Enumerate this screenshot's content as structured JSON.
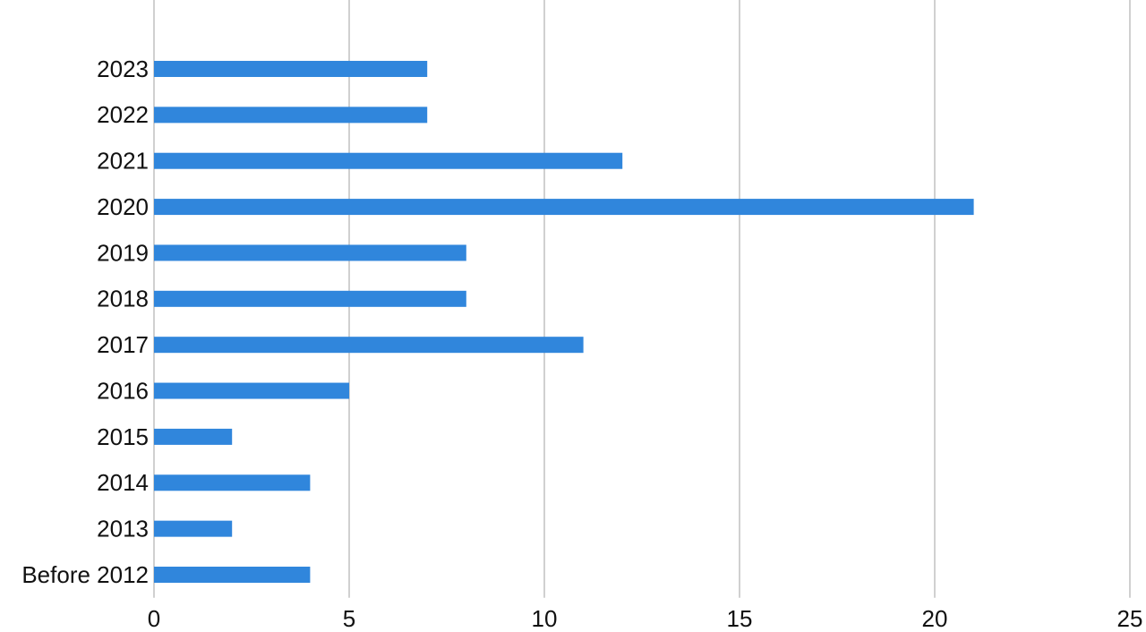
{
  "chart_data": {
    "type": "bar",
    "orientation": "horizontal",
    "categories": [
      "2023",
      "2022",
      "2021",
      "2020",
      "2019",
      "2018",
      "2017",
      "2016",
      "2015",
      "2014",
      "2013",
      "Before 2012"
    ],
    "values": [
      7,
      7,
      12,
      21,
      8,
      8,
      11,
      5,
      2,
      4,
      2,
      4
    ],
    "color": "#3086dc",
    "xlim": [
      0,
      25
    ],
    "xticks": [
      0,
      5,
      10,
      15,
      20,
      25
    ],
    "grid": true
  }
}
